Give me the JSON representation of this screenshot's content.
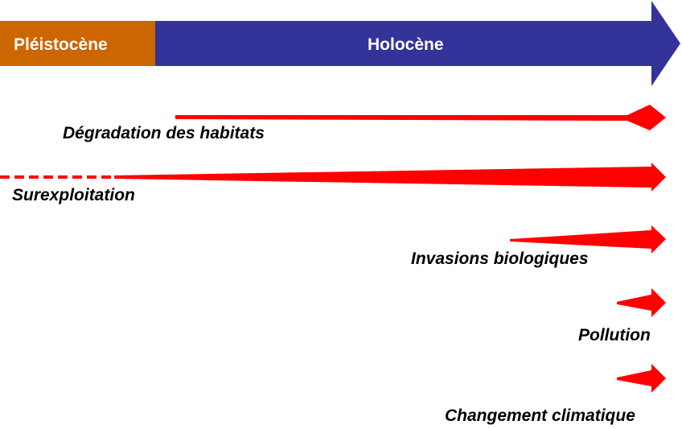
{
  "timeline": {
    "pleistocene": {
      "label": "Pléistocène",
      "color": "#cc6600"
    },
    "holocene": {
      "label": "Holocène",
      "color": "#333399"
    }
  },
  "threat_color": "#ff0000",
  "threats": [
    {
      "id": "habitat",
      "label": "Dégradation des habitats",
      "start_fraction": 0.27,
      "dashed_prefix": false
    },
    {
      "id": "overexploitation",
      "label": "Surexploitation",
      "start_fraction": 0.0,
      "dashed_prefix": true
    },
    {
      "id": "invasions",
      "label": "Invasions biologiques",
      "start_fraction": 0.78,
      "dashed_prefix": false
    },
    {
      "id": "pollution",
      "label": "Pollution",
      "start_fraction": 0.95,
      "dashed_prefix": false
    },
    {
      "id": "climate",
      "label": "Changement climatique",
      "start_fraction": 0.95,
      "dashed_prefix": false
    }
  ]
}
